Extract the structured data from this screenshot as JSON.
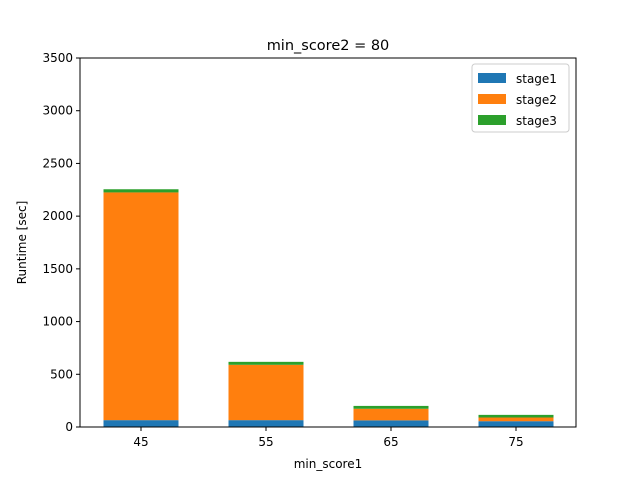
{
  "chart_data": {
    "type": "bar",
    "stacked": true,
    "title": "min_score2 = 80",
    "xlabel": "min_score1",
    "ylabel": "Runtime [sec]",
    "categories": [
      "45",
      "55",
      "65",
      "75"
    ],
    "ylim": [
      0,
      3500
    ],
    "yticks": [
      0,
      500,
      1000,
      1500,
      2000,
      2500,
      3000,
      3500
    ],
    "grid": false,
    "legend_position": "top-right",
    "series": [
      {
        "name": "stage1",
        "color": "#1f77b4",
        "values": [
          65,
          65,
          63,
          55
        ]
      },
      {
        "name": "stage2",
        "color": "#ff7f0e",
        "values": [
          2160,
          525,
          110,
          35
        ]
      },
      {
        "name": "stage3",
        "color": "#2ca02c",
        "values": [
          30,
          28,
          27,
          25
        ]
      }
    ]
  }
}
